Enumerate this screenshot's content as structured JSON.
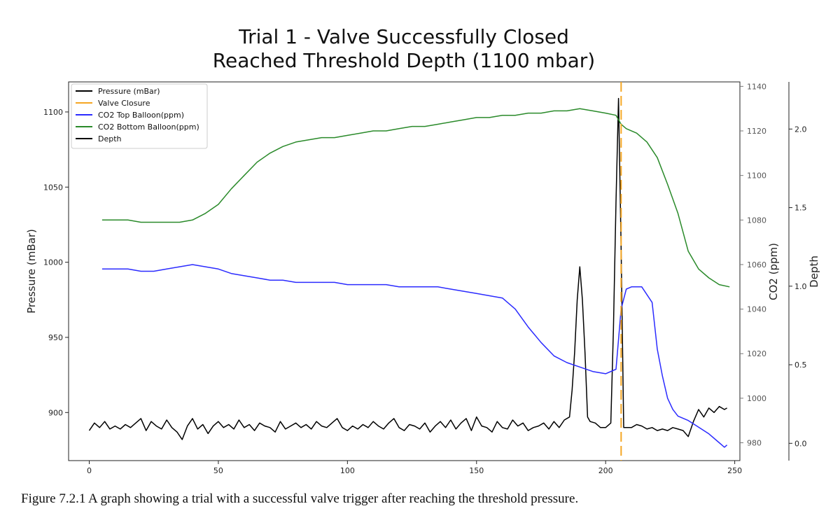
{
  "title_line1": "Trial 1 - Valve Successfully Closed",
  "title_line2": "Reached Threshold Depth (1100 mbar)",
  "caption": "Figure 7.2.1 A graph showing a trial with a successful valve trigger after reaching the threshold pressure.",
  "chart_data": {
    "type": "line",
    "xlabel": "",
    "xlim": [
      -8,
      252
    ],
    "xticks": [
      0,
      50,
      100,
      150,
      200,
      250
    ],
    "axes": {
      "left": {
        "label": "Pressure (mBar)",
        "lim": [
          868,
          1120
        ],
        "ticks": [
          900,
          950,
          1000,
          1050,
          1100
        ]
      },
      "right_co2": {
        "label": "CO2 (ppm)",
        "lim": [
          972,
          1142
        ],
        "ticks": [
          980,
          1000,
          1020,
          1040,
          1060,
          1080,
          1100,
          1120,
          1140
        ]
      },
      "right_depth": {
        "label": "Depth",
        "lim": [
          -0.11,
          2.3
        ],
        "ticks": [
          0.0,
          0.5,
          1.0,
          1.5,
          2.0
        ]
      }
    },
    "legend_position": "top-left",
    "legend": [
      {
        "name": "Pressure (mBar)",
        "color": "#000000"
      },
      {
        "name": "Valve Closure",
        "color": "#f5a623"
      },
      {
        "name": "CO2 Top Balloon(ppm)",
        "color": "#2b2bff"
      },
      {
        "name": "CO2 Bottom Balloon(ppm)",
        "color": "#2a8a2a"
      },
      {
        "name": "Depth",
        "color": "#000000"
      }
    ],
    "valve_closure_x": 206,
    "series": [
      {
        "name": "Pressure (mBar)",
        "axis": "left",
        "color": "#000000",
        "x": [
          0,
          2,
          4,
          6,
          8,
          10,
          12,
          14,
          16,
          18,
          20,
          22,
          24,
          26,
          28,
          30,
          32,
          34,
          36,
          38,
          40,
          42,
          44,
          46,
          48,
          50,
          52,
          54,
          56,
          58,
          60,
          62,
          64,
          66,
          68,
          70,
          72,
          74,
          76,
          78,
          80,
          82,
          84,
          86,
          88,
          90,
          92,
          94,
          96,
          98,
          100,
          102,
          104,
          106,
          108,
          110,
          112,
          114,
          116,
          118,
          120,
          122,
          124,
          126,
          128,
          130,
          132,
          134,
          136,
          138,
          140,
          142,
          144,
          146,
          148,
          150,
          152,
          154,
          156,
          158,
          160,
          162,
          164,
          166,
          168,
          170,
          172,
          174,
          176,
          178,
          180,
          182,
          184,
          186,
          187,
          188,
          189,
          190,
          191,
          192,
          193,
          194,
          196,
          198,
          200,
          202,
          203,
          204,
          205,
          206,
          207,
          208,
          210,
          212,
          214,
          216,
          218,
          220,
          222,
          224,
          226,
          228,
          230,
          232,
          234,
          236,
          238,
          240,
          242,
          244,
          246,
          247
        ],
        "y": [
          888,
          893,
          890,
          894,
          889,
          891,
          889,
          892,
          890,
          893,
          896,
          888,
          894,
          891,
          889,
          895,
          890,
          887,
          882,
          891,
          896,
          889,
          892,
          886,
          891,
          894,
          890,
          892,
          889,
          895,
          890,
          892,
          888,
          893,
          891,
          890,
          887,
          894,
          889,
          891,
          893,
          890,
          892,
          889,
          894,
          891,
          890,
          893,
          896,
          890,
          888,
          891,
          889,
          892,
          890,
          894,
          891,
          889,
          893,
          896,
          890,
          888,
          892,
          891,
          889,
          893,
          887,
          891,
          894,
          890,
          895,
          889,
          893,
          896,
          888,
          897,
          891,
          890,
          887,
          894,
          890,
          889,
          895,
          891,
          893,
          888,
          890,
          891,
          893,
          889,
          894,
          890,
          895,
          897,
          915,
          940,
          975,
          997,
          975,
          940,
          897,
          894,
          893,
          890,
          890,
          893,
          955,
          1040,
          1109,
          1010,
          890,
          890,
          890,
          892,
          891,
          889,
          890,
          888,
          889,
          888,
          890,
          889,
          888,
          884,
          894,
          902,
          897,
          903,
          900,
          904,
          902,
          903
        ]
      },
      {
        "name": "CO2 Top Balloon(ppm)",
        "axis": "right_co2",
        "color": "#2b2bff",
        "x": [
          5,
          10,
          15,
          20,
          25,
          30,
          35,
          40,
          45,
          50,
          55,
          60,
          65,
          70,
          75,
          80,
          85,
          90,
          95,
          100,
          105,
          110,
          115,
          120,
          125,
          130,
          135,
          140,
          145,
          150,
          155,
          160,
          165,
          170,
          175,
          180,
          185,
          190,
          195,
          200,
          204,
          206,
          208,
          210,
          214,
          218,
          220,
          222,
          224,
          226,
          228,
          232,
          236,
          240,
          244,
          246,
          247
        ],
        "y": [
          1058,
          1058,
          1058,
          1057,
          1057,
          1058,
          1059,
          1060,
          1059,
          1058,
          1056,
          1055,
          1054,
          1053,
          1053,
          1052,
          1052,
          1052,
          1052,
          1051,
          1051,
          1051,
          1051,
          1050,
          1050,
          1050,
          1050,
          1049,
          1048,
          1047,
          1046,
          1045,
          1040,
          1032,
          1025,
          1019,
          1016,
          1014,
          1012,
          1011,
          1013,
          1040,
          1049,
          1050,
          1050,
          1043,
          1022,
          1010,
          1000,
          995,
          992,
          990,
          987,
          984,
          980,
          978,
          979
        ]
      },
      {
        "name": "CO2 Bottom Balloon(ppm)",
        "axis": "right_co2",
        "color": "#2a8a2a",
        "x": [
          5,
          10,
          15,
          20,
          25,
          30,
          35,
          40,
          45,
          50,
          55,
          60,
          65,
          70,
          75,
          80,
          85,
          90,
          95,
          100,
          105,
          110,
          115,
          120,
          125,
          130,
          135,
          140,
          145,
          150,
          155,
          160,
          165,
          170,
          175,
          180,
          185,
          190,
          195,
          200,
          204,
          206,
          208,
          212,
          216,
          220,
          224,
          228,
          232,
          236,
          240,
          244,
          248
        ],
        "y": [
          1080,
          1080,
          1080,
          1079,
          1079,
          1079,
          1079,
          1080,
          1083,
          1087,
          1094,
          1100,
          1106,
          1110,
          1113,
          1115,
          1116,
          1117,
          1117,
          1118,
          1119,
          1120,
          1120,
          1121,
          1122,
          1122,
          1123,
          1124,
          1125,
          1126,
          1126,
          1127,
          1127,
          1128,
          1128,
          1129,
          1129,
          1130,
          1129,
          1128,
          1127,
          1123,
          1121,
          1119,
          1115,
          1108,
          1096,
          1083,
          1066,
          1058,
          1054,
          1051,
          1050
        ]
      }
    ]
  }
}
